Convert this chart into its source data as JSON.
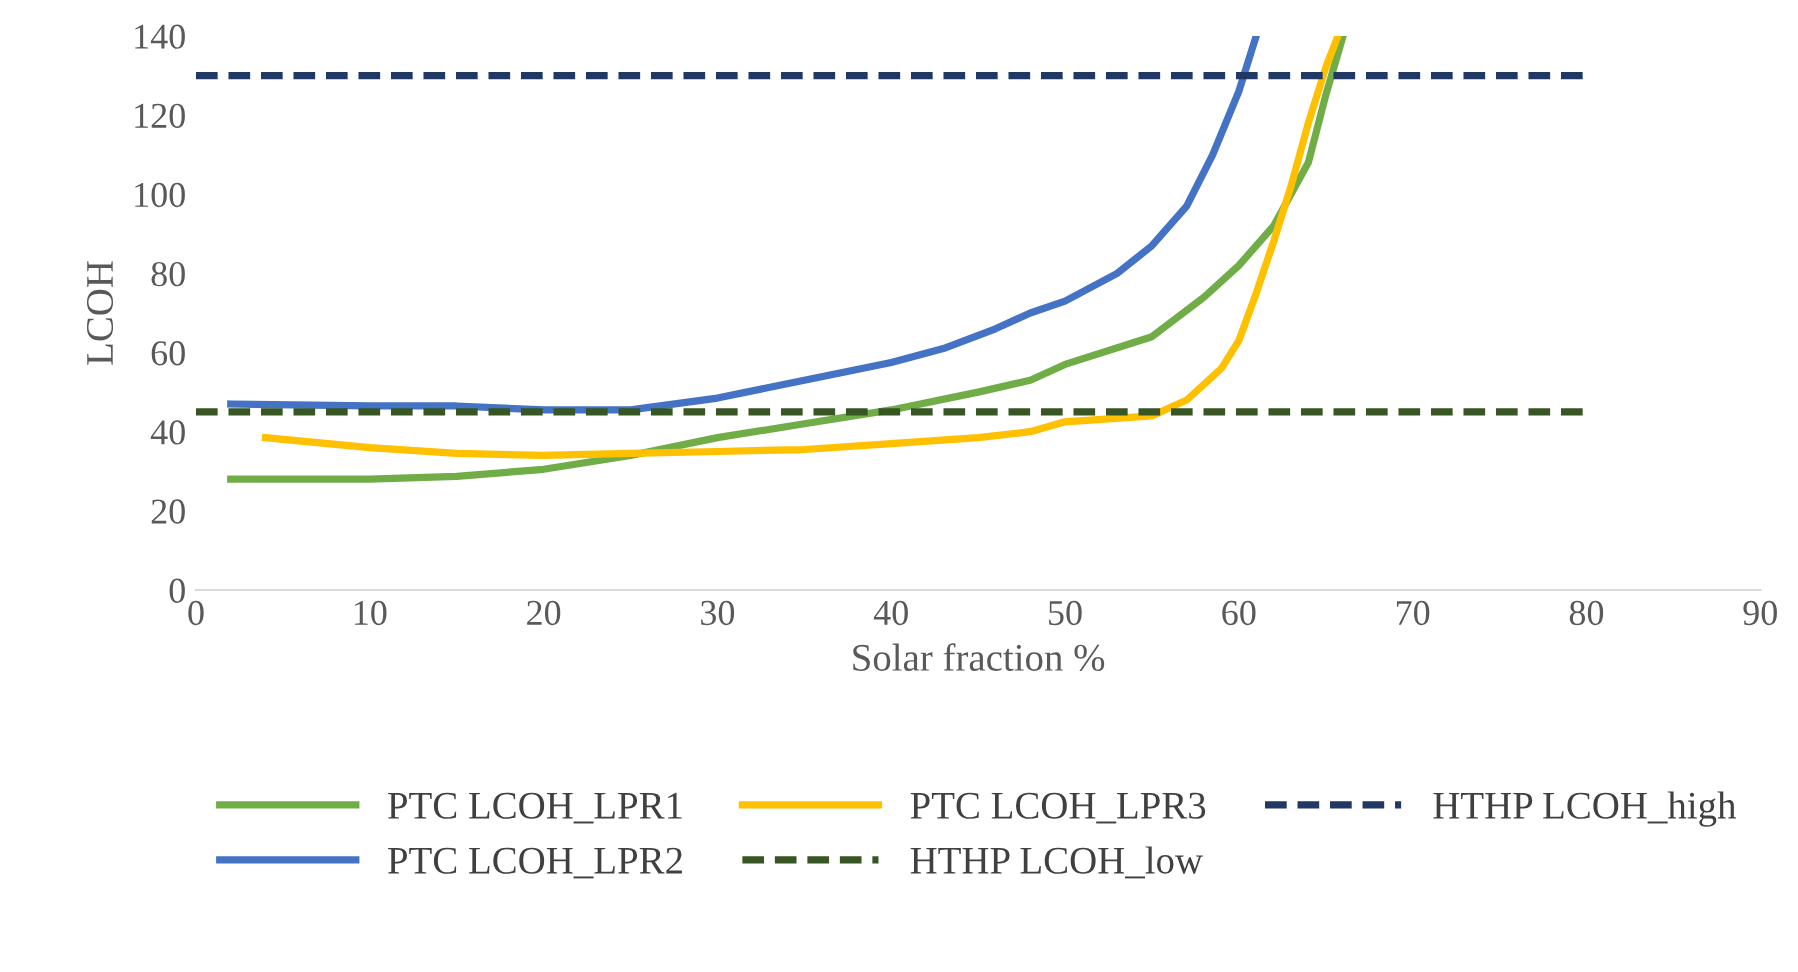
{
  "chart_data": {
    "type": "line",
    "xlabel": "Solar fraction %",
    "ylabel": "LCOH",
    "xlim": [
      0,
      90
    ],
    "ylim": [
      0,
      140
    ],
    "xticks": [
      0,
      10,
      20,
      30,
      40,
      50,
      60,
      70,
      80,
      90
    ],
    "yticks": [
      0,
      20,
      40,
      60,
      80,
      100,
      120,
      140
    ],
    "grid": false,
    "legend": "bottom",
    "marker": "none",
    "series": [
      {
        "name": "PTC LCOH_LPR1",
        "color": "#70ad47",
        "line_style": "solid",
        "x": [
          2,
          10,
          15,
          20,
          25,
          30,
          35,
          40,
          45,
          48,
          50,
          55,
          58,
          60,
          62,
          64,
          65,
          66
        ],
        "values": [
          28,
          28,
          28.7,
          30.5,
          34,
          38.5,
          42,
          45.5,
          50,
          53,
          57,
          64,
          74,
          82,
          92,
          108,
          125,
          140
        ]
      },
      {
        "name": "PTC LCOH_LPR2",
        "color": "#4472c4",
        "line_style": "solid",
        "x": [
          2,
          10,
          15,
          20,
          25,
          30,
          35,
          40,
          43,
          46,
          48,
          50,
          53,
          55,
          57,
          58.5,
          60,
          61
        ],
        "values": [
          47,
          46.5,
          46.5,
          45.5,
          45.5,
          48.5,
          53,
          57.5,
          61,
          66,
          70,
          73,
          80,
          87,
          97,
          110,
          126,
          140
        ]
      },
      {
        "name": "PTC LCOH_LPR3",
        "color": "#ffc000",
        "line_style": "solid",
        "x": [
          4,
          10,
          15,
          20,
          25,
          30,
          35,
          40,
          45,
          48,
          50,
          55,
          57,
          59,
          60,
          61,
          62,
          63,
          64,
          65,
          65.7
        ],
        "values": [
          38.5,
          36,
          34.5,
          34,
          34.5,
          35,
          35.5,
          37,
          38.5,
          40,
          42.5,
          44,
          48,
          56,
          63,
          75,
          88,
          102,
          118,
          132,
          140
        ]
      },
      {
        "name": "HTHP LCOH_low",
        "color": "#375623",
        "line_style": "dashed",
        "x": [
          0,
          80
        ],
        "values": [
          45,
          45
        ]
      },
      {
        "name": "HTHP LCOH_high",
        "color": "#203864",
        "line_style": "dashed",
        "x": [
          0,
          80
        ],
        "values": [
          130,
          130
        ]
      }
    ]
  }
}
